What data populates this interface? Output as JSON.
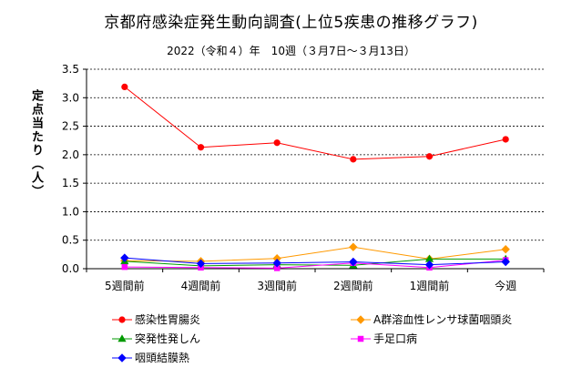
{
  "chart_data": {
    "type": "line",
    "title": "京都府感染症発生動向調査(上位5疾患の推移グラフ)",
    "subtitle": "2022（令和４）年　10週（３月7日～３月13日）",
    "ylabel": "定点当たり（人）",
    "xlabel": "",
    "categories": [
      "5週間前",
      "4週間前",
      "3週間前",
      "2週間前",
      "1週間前",
      "今週"
    ],
    "ylim": [
      0,
      3.5
    ],
    "yticks": [
      0.0,
      0.5,
      1.0,
      1.5,
      2.0,
      2.5,
      3.0,
      3.5
    ],
    "yticklabels": [
      "0.0",
      "0.5",
      "1.0",
      "1.5",
      "2.0",
      "2.5",
      "3.0",
      "3.5"
    ],
    "grid": "horizontal dashed",
    "legend_position": "bottom",
    "series": [
      {
        "name": "感染性胃腸炎",
        "color": "#ff0000",
        "marker": "circle",
        "values": [
          3.19,
          2.13,
          2.21,
          1.92,
          1.97,
          2.27
        ]
      },
      {
        "name": "A群溶血性レンサ球菌咽頭炎",
        "color": "#ff9900",
        "marker": "diamond",
        "values": [
          0.14,
          0.13,
          0.18,
          0.38,
          0.17,
          0.34
        ]
      },
      {
        "name": "突発性発しん",
        "color": "#009900",
        "marker": "triangle",
        "values": [
          0.13,
          0.05,
          0.07,
          0.06,
          0.17,
          0.17
        ]
      },
      {
        "name": "手足口病",
        "color": "#ff00ff",
        "marker": "square",
        "values": [
          0.03,
          0.02,
          0.01,
          0.1,
          0.02,
          0.15
        ]
      },
      {
        "name": "咽頭結膜熱",
        "color": "#0000ff",
        "marker": "diamond",
        "values": [
          0.19,
          0.09,
          0.1,
          0.12,
          0.07,
          0.12
        ]
      }
    ]
  }
}
